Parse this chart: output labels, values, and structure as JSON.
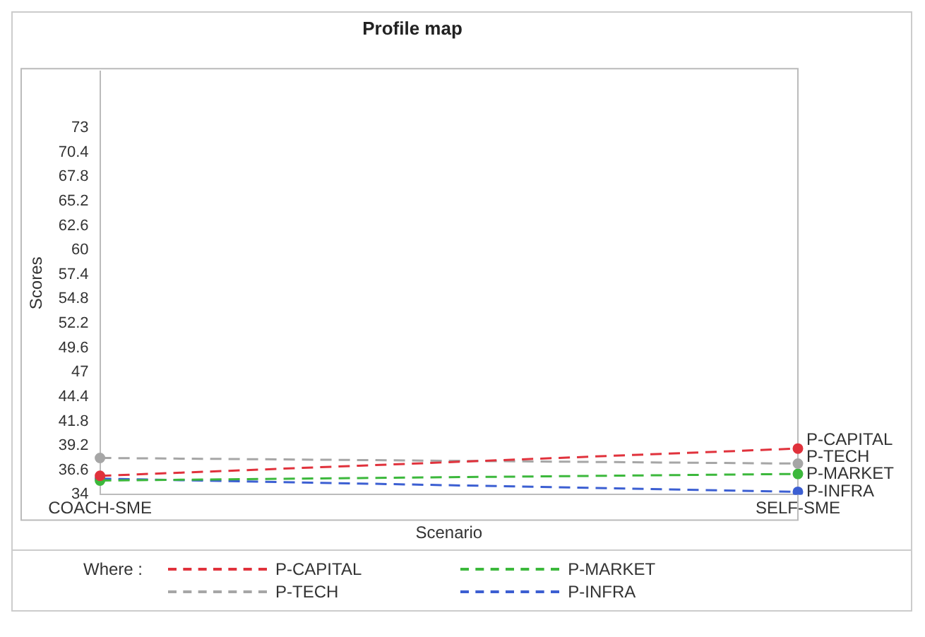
{
  "chart_data": {
    "type": "line",
    "title": "Profile map",
    "xlabel": "Scenario",
    "ylabel": "Scores",
    "legend_title": "Where :",
    "categories": [
      "COACH-SME",
      "SELF-SME"
    ],
    "series": [
      {
        "name": "P-CAPITAL",
        "color": "#e0323c",
        "values": [
          36.0,
          38.9
        ]
      },
      {
        "name": "P-TECH",
        "color": "#a6a6a6",
        "values": [
          37.9,
          37.3
        ]
      },
      {
        "name": "P-MARKET",
        "color": "#3cb83c",
        "values": [
          35.5,
          36.2
        ]
      },
      {
        "name": "P-INFRA",
        "color": "#3c5fd2",
        "values": [
          35.7,
          34.3
        ]
      }
    ],
    "ylim": [
      34,
      79
    ],
    "yticks": [
      34,
      36.6,
      39.2,
      41.8,
      44.4,
      47,
      49.6,
      52.2,
      54.8,
      57.4,
      60,
      62.6,
      65.2,
      67.8,
      70.4,
      73
    ],
    "grid": false,
    "legend": "bottom",
    "marker": "circle",
    "line_style": "dashed"
  }
}
